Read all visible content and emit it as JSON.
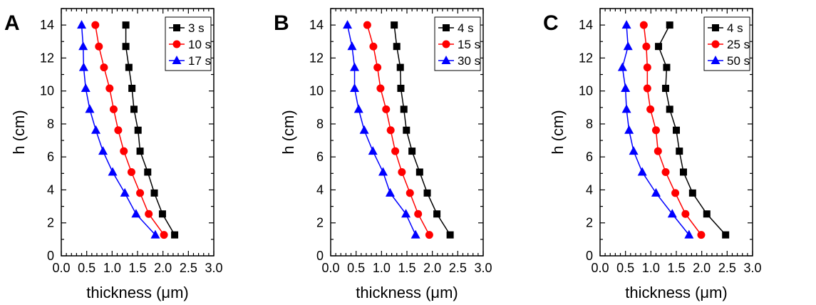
{
  "chart_data": [
    {
      "type": "line",
      "panel_label": "A",
      "xlabel": "thickness (μm)",
      "ylabel": "h (cm)",
      "xlim": [
        0,
        3.0
      ],
      "ylim": [
        0,
        15
      ],
      "xticks": [
        "0.0",
        "0.5",
        "1.0",
        "1.5",
        "2.0",
        "2.5",
        "3.0"
      ],
      "yticks": [
        "0",
        "2",
        "4",
        "6",
        "8",
        "10",
        "12",
        "14"
      ],
      "grid": false,
      "legend_position": "top-right",
      "y": [
        1.27,
        2.54,
        3.81,
        5.08,
        6.35,
        7.62,
        8.89,
        10.16,
        11.43,
        12.7,
        14.0
      ],
      "series": [
        {
          "name": "3 s",
          "color": "#000000",
          "marker": "square",
          "x": [
            2.23,
            1.99,
            1.83,
            1.7,
            1.55,
            1.51,
            1.43,
            1.39,
            1.33,
            1.27,
            1.27
          ]
        },
        {
          "name": "10 s",
          "color": "#ff0000",
          "marker": "circle",
          "x": [
            2.02,
            1.72,
            1.55,
            1.38,
            1.23,
            1.12,
            1.03,
            0.95,
            0.84,
            0.74,
            0.67
          ]
        },
        {
          "name": "17 s",
          "color": "#0000ff",
          "marker": "triangle",
          "x": [
            1.85,
            1.47,
            1.25,
            1.01,
            0.82,
            0.68,
            0.56,
            0.48,
            0.44,
            0.43,
            0.4
          ]
        }
      ]
    },
    {
      "type": "line",
      "panel_label": "B",
      "xlabel": "thickness (μm)",
      "ylabel": "h (cm)",
      "xlim": [
        0,
        3.0
      ],
      "ylim": [
        0,
        15
      ],
      "xticks": [
        "0.0",
        "0.5",
        "1.0",
        "1.5",
        "2.0",
        "2.5",
        "3.0"
      ],
      "yticks": [
        "0",
        "2",
        "4",
        "6",
        "8",
        "10",
        "12",
        "14"
      ],
      "grid": false,
      "legend_position": "top-right",
      "y": [
        1.27,
        2.54,
        3.81,
        5.08,
        6.35,
        7.62,
        8.89,
        10.16,
        11.43,
        12.7,
        14.0
      ],
      "series": [
        {
          "name": "4 s",
          "color": "#000000",
          "marker": "square",
          "x": [
            2.35,
            2.09,
            1.9,
            1.75,
            1.6,
            1.49,
            1.44,
            1.38,
            1.37,
            1.3,
            1.25
          ]
        },
        {
          "name": "15 s",
          "color": "#ff0000",
          "marker": "circle",
          "x": [
            1.94,
            1.72,
            1.56,
            1.4,
            1.27,
            1.18,
            1.09,
            0.98,
            0.92,
            0.84,
            0.72
          ]
        },
        {
          "name": "30 s",
          "color": "#0000ff",
          "marker": "triangle",
          "x": [
            1.67,
            1.48,
            1.17,
            1.03,
            0.83,
            0.66,
            0.55,
            0.47,
            0.47,
            0.42,
            0.33
          ]
        }
      ]
    },
    {
      "type": "line",
      "panel_label": "C",
      "xlabel": "thickness (μm)",
      "ylabel": "h (cm)",
      "xlim": [
        0,
        3.0
      ],
      "ylim": [
        0,
        15
      ],
      "xticks": [
        "0.0",
        "0.5",
        "1.0",
        "1.5",
        "2.0",
        "2.5",
        "3.0"
      ],
      "yticks": [
        "0",
        "2",
        "4",
        "6",
        "8",
        "10",
        "12",
        "14"
      ],
      "grid": false,
      "legend_position": "top-right",
      "y": [
        1.27,
        2.54,
        3.81,
        5.08,
        6.35,
        7.62,
        8.89,
        10.16,
        11.43,
        12.7,
        14.0
      ],
      "series": [
        {
          "name": "4 s",
          "color": "#000000",
          "marker": "square",
          "x": [
            2.47,
            2.1,
            1.82,
            1.64,
            1.56,
            1.5,
            1.37,
            1.29,
            1.31,
            1.15,
            1.37
          ]
        },
        {
          "name": "25 s",
          "color": "#ff0000",
          "marker": "circle",
          "x": [
            1.99,
            1.68,
            1.48,
            1.29,
            1.14,
            1.1,
            0.99,
            0.93,
            0.93,
            0.91,
            0.86
          ]
        },
        {
          "name": "50 s",
          "color": "#0000ff",
          "marker": "triangle",
          "x": [
            1.75,
            1.42,
            1.1,
            0.83,
            0.66,
            0.57,
            0.52,
            0.5,
            0.44,
            0.55,
            0.52
          ]
        }
      ]
    }
  ]
}
